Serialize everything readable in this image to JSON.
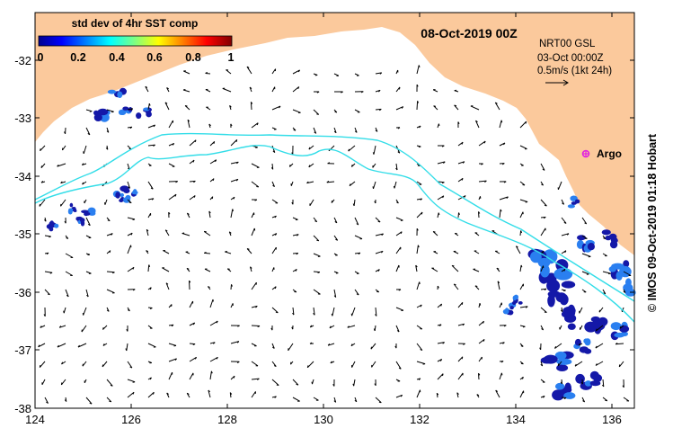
{
  "map": {
    "date_title": "08-Oct-2019 00Z",
    "colorbar": {
      "title": "std dev of 4hr SST comp",
      "ticks": [
        "0",
        "0.2",
        "0.4",
        "0.6",
        "0.8",
        "1"
      ],
      "range": [
        0,
        1
      ],
      "colormap": "jet"
    },
    "info": {
      "line1": "NRT00 GSL",
      "line2": "03-Oct 00:00Z",
      "line3": "0.5m/s (1kt 24h)"
    },
    "marker_label": "Argo",
    "credit": "© IMOS 09-Oct-2019 01:18 Hobart",
    "y_ticks": [
      "-32",
      "-33",
      "-34",
      "-35",
      "-36",
      "-37",
      "-38"
    ],
    "x_ticks": [
      "124",
      "126",
      "128",
      "130",
      "132",
      "134",
      "136"
    ],
    "colors": {
      "land": "#fbc99c",
      "contour": "#33dde8",
      "marker": "#e020e0",
      "sst_low": "#1418a8",
      "sst_mid": "#2a7ff0"
    }
  }
}
